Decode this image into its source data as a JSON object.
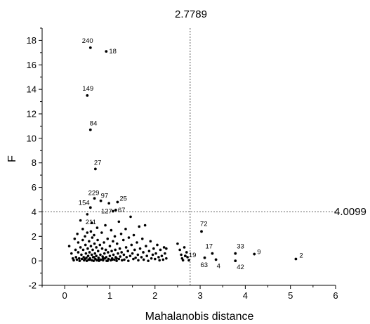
{
  "chart_data": {
    "type": "scatter",
    "title": "",
    "xlabel": "Mahalanobis distance",
    "ylabel": "F",
    "xlim": [
      -0.5,
      6
    ],
    "ylim": [
      -2,
      19
    ],
    "xticks": [
      0,
      1,
      2,
      3,
      4,
      5,
      6
    ],
    "yticks": [
      -2,
      0,
      2,
      4,
      6,
      8,
      10,
      12,
      14,
      16,
      18
    ],
    "grid": false,
    "ref_lines": {
      "vertical": {
        "x": 2.7789,
        "label": "2.7789"
      },
      "horizontal": {
        "y": 4.0099,
        "label": "4.0099"
      }
    },
    "labeled_points": [
      {
        "id": "240",
        "x": 0.57,
        "y": 17.4
      },
      {
        "id": "18",
        "x": 0.92,
        "y": 17.1
      },
      {
        "id": "149",
        "x": 0.5,
        "y": 13.5
      },
      {
        "id": "84",
        "x": 0.57,
        "y": 10.7
      },
      {
        "id": "27",
        "x": 0.68,
        "y": 7.5
      },
      {
        "id": "229",
        "x": 0.66,
        "y": 5.1
      },
      {
        "id": "97",
        "x": 0.8,
        "y": 4.9
      },
      {
        "id": "25",
        "x": 1.17,
        "y": 4.8
      },
      {
        "id": "154",
        "x": 0.57,
        "y": 4.35
      },
      {
        "id": "127",
        "x": 1.07,
        "y": 4.05
      },
      {
        "id": "67",
        "x": 1.13,
        "y": 4.15
      },
      {
        "id": "211",
        "x": 0.6,
        "y": 3.1
      },
      {
        "id": "72",
        "x": 3.03,
        "y": 2.4
      },
      {
        "id": "19",
        "x": 2.67,
        "y": 0.4
      },
      {
        "id": "63",
        "x": 3.1,
        "y": 0.25
      },
      {
        "id": "17",
        "x": 3.27,
        "y": 0.6
      },
      {
        "id": "4",
        "x": 3.35,
        "y": 0.1
      },
      {
        "id": "33",
        "x": 3.78,
        "y": 0.6
      },
      {
        "id": "42",
        "x": 3.78,
        "y": 0.0
      },
      {
        "id": "9",
        "x": 4.2,
        "y": 0.55
      },
      {
        "id": "2",
        "x": 5.12,
        "y": 0.15
      }
    ],
    "unlabeled_points": [
      [
        0.1,
        1.2
      ],
      [
        0.15,
        0.6
      ],
      [
        0.18,
        0.2
      ],
      [
        0.2,
        0.05
      ],
      [
        0.22,
        1.8
      ],
      [
        0.24,
        0.9
      ],
      [
        0.25,
        0.3
      ],
      [
        0.27,
        0.1
      ],
      [
        0.28,
        2.2
      ],
      [
        0.3,
        1.5
      ],
      [
        0.3,
        0.7
      ],
      [
        0.32,
        0.2
      ],
      [
        0.33,
        0.0
      ],
      [
        0.35,
        3.3
      ],
      [
        0.35,
        1.1
      ],
      [
        0.37,
        0.5
      ],
      [
        0.38,
        0.15
      ],
      [
        0.4,
        2.6
      ],
      [
        0.4,
        1.7
      ],
      [
        0.41,
        0.9
      ],
      [
        0.42,
        0.3
      ],
      [
        0.43,
        0.05
      ],
      [
        0.45,
        2.0
      ],
      [
        0.46,
        1.3
      ],
      [
        0.47,
        0.6
      ],
      [
        0.48,
        0.25
      ],
      [
        0.49,
        0.0
      ],
      [
        0.5,
        3.8
      ],
      [
        0.5,
        2.3
      ],
      [
        0.51,
        1.0
      ],
      [
        0.52,
        0.4
      ],
      [
        0.53,
        0.1
      ],
      [
        0.54,
        1.6
      ],
      [
        0.55,
        0.7
      ],
      [
        0.56,
        0.2
      ],
      [
        0.58,
        2.4
      ],
      [
        0.58,
        1.2
      ],
      [
        0.6,
        0.5
      ],
      [
        0.6,
        0.05
      ],
      [
        0.61,
        1.9
      ],
      [
        0.62,
        0.9
      ],
      [
        0.63,
        0.3
      ],
      [
        0.64,
        0.0
      ],
      [
        0.65,
        2.1
      ],
      [
        0.66,
        1.4
      ],
      [
        0.67,
        0.6
      ],
      [
        0.68,
        0.15
      ],
      [
        0.7,
        1.1
      ],
      [
        0.7,
        0.4
      ],
      [
        0.71,
        0.05
      ],
      [
        0.72,
        2.7
      ],
      [
        0.73,
        1.7
      ],
      [
        0.74,
        0.8
      ],
      [
        0.75,
        0.25
      ],
      [
        0.76,
        0.0
      ],
      [
        0.78,
        1.3
      ],
      [
        0.79,
        0.5
      ],
      [
        0.8,
        0.1
      ],
      [
        0.82,
        2.3
      ],
      [
        0.83,
        1.0
      ],
      [
        0.84,
        0.35
      ],
      [
        0.85,
        0.05
      ],
      [
        0.87,
        1.5
      ],
      [
        0.88,
        0.6
      ],
      [
        0.89,
        0.2
      ],
      [
        0.9,
        2.9
      ],
      [
        0.91,
        0.9
      ],
      [
        0.92,
        0.3
      ],
      [
        0.93,
        0.0
      ],
      [
        0.95,
        1.8
      ],
      [
        0.96,
        0.7
      ],
      [
        0.97,
        0.15
      ],
      [
        0.98,
        4.7
      ],
      [
        1.0,
        1.2
      ],
      [
        1.0,
        0.4
      ],
      [
        1.02,
        0.05
      ],
      [
        1.03,
        2.5
      ],
      [
        1.04,
        0.8
      ],
      [
        1.05,
        0.2
      ],
      [
        1.07,
        1.6
      ],
      [
        1.08,
        0.5
      ],
      [
        1.1,
        0.1
      ],
      [
        1.11,
        2.0
      ],
      [
        1.12,
        0.9
      ],
      [
        1.13,
        0.3
      ],
      [
        1.15,
        0.0
      ],
      [
        1.16,
        1.4
      ],
      [
        1.18,
        0.6
      ],
      [
        1.2,
        3.2
      ],
      [
        1.2,
        0.15
      ],
      [
        1.22,
        1.0
      ],
      [
        1.23,
        0.35
      ],
      [
        1.25,
        2.2
      ],
      [
        1.26,
        0.7
      ],
      [
        1.27,
        0.05
      ],
      [
        1.3,
        1.7
      ],
      [
        1.31,
        0.5
      ],
      [
        1.32,
        0.1
      ],
      [
        1.35,
        2.6
      ],
      [
        1.36,
        1.1
      ],
      [
        1.37,
        0.3
      ],
      [
        1.4,
        0.8
      ],
      [
        1.41,
        0.0
      ],
      [
        1.42,
        1.9
      ],
      [
        1.45,
        0.4
      ],
      [
        1.46,
        3.6
      ],
      [
        1.48,
        1.3
      ],
      [
        1.5,
        0.6
      ],
      [
        1.52,
        0.15
      ],
      [
        1.53,
        2.1
      ],
      [
        1.55,
        0.9
      ],
      [
        1.57,
        0.25
      ],
      [
        1.6,
        1.5
      ],
      [
        1.62,
        0.5
      ],
      [
        1.63,
        0.05
      ],
      [
        1.65,
        2.8
      ],
      [
        1.67,
        1.0
      ],
      [
        1.7,
        0.3
      ],
      [
        1.72,
        1.8
      ],
      [
        1.74,
        0.7
      ],
      [
        1.75,
        0.1
      ],
      [
        1.78,
        2.9
      ],
      [
        1.8,
        1.2
      ],
      [
        1.82,
        0.4
      ],
      [
        1.85,
        0.0
      ],
      [
        1.87,
        0.8
      ],
      [
        1.9,
        1.6
      ],
      [
        1.92,
        0.2
      ],
      [
        1.95,
        0.5
      ],
      [
        1.97,
        1.0
      ],
      [
        2.0,
        0.15
      ],
      [
        2.02,
        0.6
      ],
      [
        2.05,
        1.3
      ],
      [
        2.08,
        0.3
      ],
      [
        2.1,
        0.05
      ],
      [
        2.12,
        0.9
      ],
      [
        2.15,
        0.4
      ],
      [
        2.18,
        0.1
      ],
      [
        2.2,
        1.1
      ],
      [
        2.22,
        0.6
      ],
      [
        2.25,
        0.2
      ],
      [
        2.25,
        1.0
      ],
      [
        0.45,
        0.15
      ],
      [
        0.55,
        0.1
      ],
      [
        0.65,
        0.3
      ],
      [
        0.75,
        0.1
      ],
      [
        0.85,
        0.2
      ],
      [
        0.95,
        0.0
      ],
      [
        1.05,
        0.1
      ],
      [
        1.15,
        0.2
      ],
      [
        2.5,
        1.4
      ],
      [
        2.55,
        0.9
      ],
      [
        2.58,
        0.5
      ],
      [
        2.6,
        0.2
      ],
      [
        2.62,
        0.05
      ],
      [
        2.65,
        1.1
      ],
      [
        2.7,
        0.7
      ],
      [
        2.72,
        0.3
      ],
      [
        2.75,
        0.05
      ]
    ]
  }
}
